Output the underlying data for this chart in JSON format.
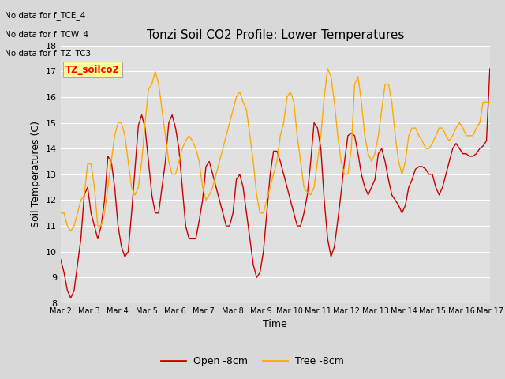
{
  "title": "Tonzi Soil CO2 Profile: Lower Temperatures",
  "xlabel": "Time",
  "ylabel": "Soil Temperatures (C)",
  "ylim": [
    8.0,
    18.0
  ],
  "yticks": [
    8.0,
    9.0,
    10.0,
    11.0,
    12.0,
    13.0,
    14.0,
    15.0,
    16.0,
    17.0,
    18.0
  ],
  "xtick_labels": [
    "Mar 2",
    "Mar 3",
    "Mar 4",
    "Mar 5",
    "Mar 6",
    "Mar 7",
    "Mar 8",
    "Mar 9",
    "Mar 10",
    "Mar 11",
    "Mar 12",
    "Mar 13",
    "Mar 14",
    "Mar 15",
    "Mar 16",
    "Mar 17"
  ],
  "fig_bg_color": "#d8d8d8",
  "plot_bg_color": "#e0e0e0",
  "grid_color": "#ffffff",
  "open_color": "#cc0000",
  "tree_color": "#ffaa00",
  "legend_labels": [
    "Open -8cm",
    "Tree -8cm"
  ],
  "annotation_lines": [
    "No data for f_TCE_4",
    "No data for f_TCW_4",
    "No data for f_TZ_TC3"
  ],
  "annotation_box_label": "TZ_soilco2",
  "open_data": [
    9.7,
    9.2,
    8.5,
    8.2,
    8.5,
    9.5,
    10.5,
    12.2,
    12.5,
    11.5,
    11.0,
    10.5,
    11.0,
    12.0,
    13.7,
    13.5,
    12.5,
    11.0,
    10.2,
    9.8,
    10.0,
    11.5,
    13.2,
    14.9,
    15.3,
    14.8,
    13.5,
    12.2,
    11.5,
    11.5,
    12.5,
    13.5,
    15.0,
    15.3,
    14.8,
    14.0,
    12.5,
    11.0,
    10.5,
    10.5,
    10.5,
    11.2,
    12.0,
    13.3,
    13.5,
    13.0,
    12.5,
    12.0,
    11.5,
    11.0,
    11.0,
    11.5,
    12.8,
    13.0,
    12.5,
    11.5,
    10.5,
    9.5,
    9.0,
    9.2,
    10.0,
    11.5,
    13.0,
    13.9,
    13.9,
    13.5,
    13.0,
    12.5,
    12.0,
    11.5,
    11.0,
    11.0,
    11.5,
    12.2,
    13.5,
    15.0,
    14.8,
    14.0,
    12.0,
    10.5,
    9.8,
    10.2,
    11.2,
    12.3,
    13.5,
    14.5,
    14.6,
    14.5,
    13.8,
    13.0,
    12.5,
    12.2,
    12.5,
    12.8,
    13.8,
    14.0,
    13.5,
    12.8,
    12.2,
    12.0,
    11.8,
    11.5,
    11.8,
    12.5,
    12.8,
    13.2,
    13.3,
    13.3,
    13.2,
    13.0,
    13.0,
    12.5,
    12.2,
    12.5,
    13.0,
    13.5,
    14.0,
    14.2,
    14.0,
    13.8,
    13.8,
    13.7,
    13.7,
    13.8,
    14.0,
    14.1,
    14.3,
    17.1
  ],
  "tree_data": [
    11.5,
    11.5,
    11.0,
    10.8,
    11.0,
    11.5,
    12.0,
    12.2,
    13.4,
    13.4,
    12.5,
    11.0,
    11.0,
    11.5,
    12.5,
    13.5,
    14.5,
    15.0,
    15.0,
    14.5,
    13.5,
    12.5,
    12.2,
    12.5,
    13.5,
    15.0,
    16.3,
    16.5,
    17.0,
    16.5,
    15.5,
    14.5,
    13.5,
    13.0,
    13.0,
    13.5,
    14.0,
    14.3,
    14.5,
    14.3,
    14.0,
    13.5,
    12.5,
    12.0,
    12.2,
    12.5,
    13.0,
    13.5,
    14.0,
    14.5,
    15.0,
    15.5,
    16.0,
    16.2,
    15.8,
    15.5,
    14.5,
    13.5,
    12.2,
    11.5,
    11.5,
    12.0,
    12.5,
    13.0,
    13.5,
    14.5,
    15.0,
    16.0,
    16.2,
    15.8,
    14.5,
    13.5,
    12.5,
    12.3,
    12.2,
    12.5,
    13.5,
    14.5,
    16.0,
    17.1,
    16.8,
    15.8,
    14.5,
    13.5,
    13.0,
    13.0,
    14.0,
    16.5,
    16.8,
    15.8,
    14.5,
    13.8,
    13.5,
    13.8,
    14.5,
    15.5,
    16.5,
    16.5,
    15.8,
    14.5,
    13.5,
    13.0,
    13.5,
    14.5,
    14.8,
    14.8,
    14.5,
    14.3,
    14.0,
    14.0,
    14.2,
    14.5,
    14.8,
    14.8,
    14.5,
    14.3,
    14.5,
    14.8,
    15.0,
    14.8,
    14.5,
    14.5,
    14.5,
    14.8,
    15.0,
    15.8,
    15.8,
    15.8
  ]
}
